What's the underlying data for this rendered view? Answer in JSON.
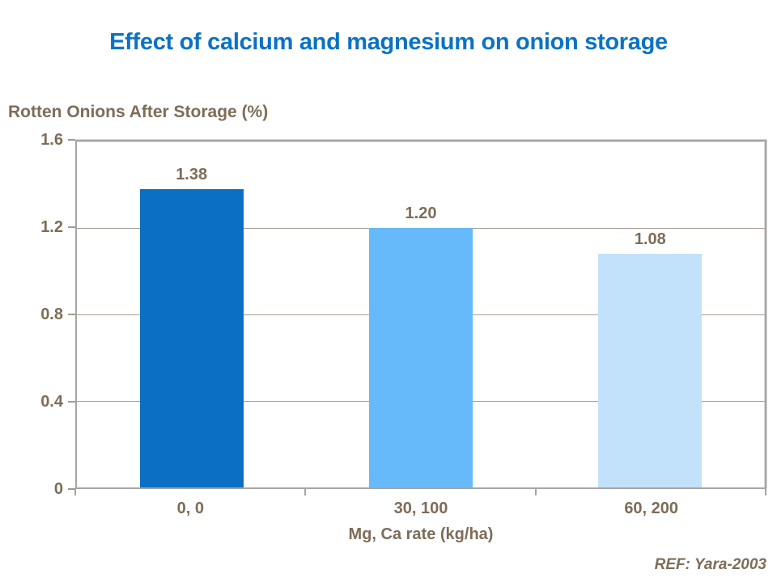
{
  "title": {
    "text": "Effect of calcium and magnesium on onion storage",
    "color": "#0A72C6"
  },
  "chart_data": {
    "type": "bar",
    "title": "Effect of calcium and magnesium on onion storage",
    "ylabel": "Rotten Onions After Storage (%)",
    "xlabel": "Mg, Ca rate (kg/ha)",
    "categories": [
      "0, 0",
      "30, 100",
      "60, 200"
    ],
    "values": [
      1.38,
      1.2,
      1.08
    ],
    "value_labels": [
      "1.38",
      "1.20",
      "1.08"
    ],
    "bar_colors": [
      "#0B70C4",
      "#66BAFA",
      "#C2E1FA"
    ],
    "ylim": [
      0,
      1.6
    ],
    "y_ticks": [
      "1.6",
      "1.2",
      "0.8",
      "0.4",
      "0"
    ],
    "y_tick_values": [
      1.6,
      1.2,
      0.8,
      0.4,
      0
    ],
    "grid": true,
    "legend_position": "none"
  },
  "colors": {
    "axis_text": "#7D6C58",
    "gridline": "#A99D92",
    "plot_border": "#A5A5A5",
    "background": "#FFFFFF"
  },
  "footer": {
    "ref": "REF: Yara-2003"
  }
}
